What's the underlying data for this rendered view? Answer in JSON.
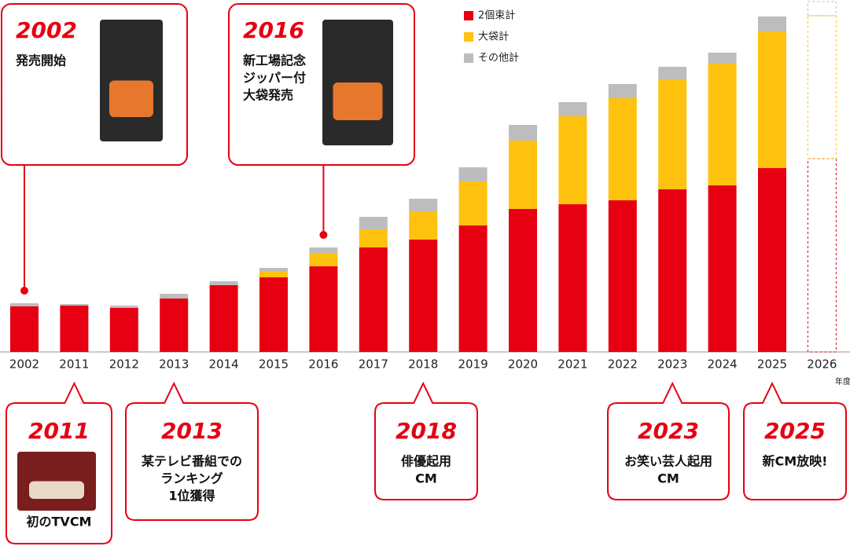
{
  "chart_data": {
    "type": "stacked_bar",
    "categories": [
      "2002",
      "2011",
      "2012",
      "2013",
      "2014",
      "2015",
      "2016",
      "2017",
      "2018",
      "2019",
      "2020",
      "2021",
      "2022",
      "2023",
      "2024",
      "2025",
      "2026"
    ],
    "x_axis_unit": "年度",
    "last_category_style": "dashed",
    "series": [
      {
        "name": "2個束計",
        "color": "#e60012",
        "values": [
          58,
          59,
          56,
          68,
          85,
          95,
          109,
          133,
          143,
          161,
          182,
          188,
          193,
          207,
          212,
          234,
          246
        ]
      },
      {
        "name": "大袋計",
        "color": "#ffc20e",
        "values": [
          0,
          0,
          0,
          0,
          0,
          7,
          17,
          23,
          36,
          56,
          87,
          112,
          130,
          140,
          155,
          174,
          182
        ]
      },
      {
        "name": "その他計",
        "color": "#bdbdbd",
        "values": [
          4,
          2,
          3,
          6,
          5,
          5,
          7,
          16,
          16,
          18,
          20,
          18,
          18,
          16,
          14,
          19,
          18
        ]
      }
    ],
    "annotations": [
      {
        "year": "2002",
        "lines": [
          "発売開始"
        ]
      },
      {
        "year": "2016",
        "lines": [
          "新工場記念",
          "ジッパー付",
          "大袋発売"
        ]
      },
      {
        "year": "2011",
        "lines": [
          "初のTVCM"
        ]
      },
      {
        "year": "2013",
        "lines": [
          "某テレビ番組での",
          "ランキング",
          "1位獲得"
        ]
      },
      {
        "year": "2018",
        "lines": [
          "俳優起用",
          "CM"
        ]
      },
      {
        "year": "2023",
        "lines": [
          "お笑い芸人起用",
          "CM"
        ]
      },
      {
        "year": "2025",
        "lines": [
          "新CM放映!"
        ]
      }
    ]
  }
}
